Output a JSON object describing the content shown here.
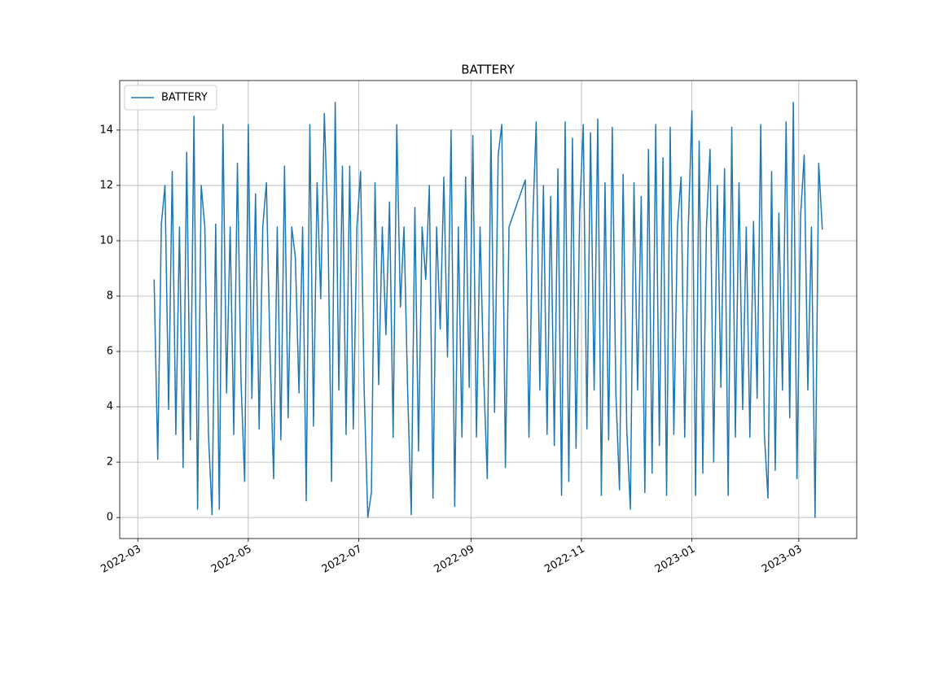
{
  "chart_data": {
    "type": "line",
    "title": "BATTERY",
    "series": [
      {
        "name": "BATTERY",
        "color": "#1f77b4",
        "x": [
          "2022-03-10",
          "2022-03-12",
          "2022-03-14",
          "2022-03-16",
          "2022-03-18",
          "2022-03-20",
          "2022-03-22",
          "2022-03-24",
          "2022-03-26",
          "2022-03-28",
          "2022-03-30",
          "2022-04-01",
          "2022-04-03",
          "2022-04-05",
          "2022-04-07",
          "2022-04-09",
          "2022-04-11",
          "2022-04-13",
          "2022-04-15",
          "2022-04-17",
          "2022-04-19",
          "2022-04-21",
          "2022-04-23",
          "2022-04-25",
          "2022-04-27",
          "2022-04-29",
          "2022-05-01",
          "2022-05-03",
          "2022-05-05",
          "2022-05-07",
          "2022-05-09",
          "2022-05-11",
          "2022-05-13",
          "2022-05-15",
          "2022-05-17",
          "2022-05-19",
          "2022-05-21",
          "2022-05-23",
          "2022-05-25",
          "2022-05-27",
          "2022-05-29",
          "2022-05-31",
          "2022-06-02",
          "2022-06-04",
          "2022-06-06",
          "2022-06-08",
          "2022-06-10",
          "2022-06-12",
          "2022-06-14",
          "2022-06-16",
          "2022-06-18",
          "2022-06-20",
          "2022-06-22",
          "2022-06-24",
          "2022-06-26",
          "2022-06-28",
          "2022-06-30",
          "2022-07-02",
          "2022-07-04",
          "2022-07-06",
          "2022-07-08",
          "2022-07-10",
          "2022-07-12",
          "2022-07-14",
          "2022-07-16",
          "2022-07-18",
          "2022-07-20",
          "2022-07-22",
          "2022-07-24",
          "2022-07-26",
          "2022-07-28",
          "2022-07-30",
          "2022-08-01",
          "2022-08-03",
          "2022-08-05",
          "2022-08-07",
          "2022-08-09",
          "2022-08-11",
          "2022-08-13",
          "2022-08-15",
          "2022-08-17",
          "2022-08-19",
          "2022-08-21",
          "2022-08-23",
          "2022-08-25",
          "2022-08-27",
          "2022-08-29",
          "2022-08-31",
          "2022-09-02",
          "2022-09-04",
          "2022-09-06",
          "2022-09-08",
          "2022-09-10",
          "2022-09-12",
          "2022-09-14",
          "2022-09-16",
          "2022-09-18",
          "2022-09-20",
          "2022-09-22",
          "2022-10-01",
          "2022-10-03",
          "2022-10-05",
          "2022-10-07",
          "2022-10-09",
          "2022-10-11",
          "2022-10-13",
          "2022-10-15",
          "2022-10-17",
          "2022-10-19",
          "2022-10-21",
          "2022-10-23",
          "2022-10-25",
          "2022-10-27",
          "2022-10-29",
          "2022-10-31",
          "2022-11-02",
          "2022-11-04",
          "2022-11-06",
          "2022-11-08",
          "2022-11-10",
          "2022-11-12",
          "2022-11-14",
          "2022-11-16",
          "2022-11-18",
          "2022-11-20",
          "2022-11-22",
          "2022-11-24",
          "2022-11-26",
          "2022-11-28",
          "2022-11-30",
          "2022-12-02",
          "2022-12-04",
          "2022-12-06",
          "2022-12-08",
          "2022-12-10",
          "2022-12-12",
          "2022-12-14",
          "2022-12-16",
          "2022-12-18",
          "2022-12-20",
          "2022-12-22",
          "2022-12-24",
          "2022-12-26",
          "2022-12-28",
          "2022-12-30",
          "2023-01-01",
          "2023-01-03",
          "2023-01-05",
          "2023-01-07",
          "2023-01-09",
          "2023-01-11",
          "2023-01-13",
          "2023-01-15",
          "2023-01-17",
          "2023-01-19",
          "2023-01-21",
          "2023-01-23",
          "2023-01-25",
          "2023-01-27",
          "2023-01-29",
          "2023-01-31",
          "2023-02-02",
          "2023-02-04",
          "2023-02-06",
          "2023-02-08",
          "2023-02-10",
          "2023-02-12",
          "2023-02-14",
          "2023-02-16",
          "2023-02-18",
          "2023-02-20",
          "2023-02-22",
          "2023-02-24",
          "2023-02-26",
          "2023-02-28",
          "2023-03-02",
          "2023-03-04",
          "2023-03-06",
          "2023-03-08",
          "2023-03-10",
          "2023-03-12",
          "2023-03-14"
        ],
        "values": [
          8.6,
          2.1,
          10.6,
          12.0,
          3.9,
          12.5,
          3.0,
          10.5,
          1.8,
          13.2,
          2.8,
          14.5,
          0.3,
          12.0,
          10.5,
          3.0,
          0.1,
          10.6,
          0.3,
          14.2,
          4.5,
          10.5,
          3.0,
          12.8,
          4.9,
          1.3,
          14.2,
          4.3,
          11.7,
          3.2,
          10.5,
          12.1,
          6.0,
          1.4,
          10.5,
          2.8,
          12.7,
          3.6,
          10.5,
          9.4,
          4.5,
          10.5,
          0.6,
          14.2,
          3.3,
          12.1,
          7.9,
          14.6,
          10.5,
          1.3,
          15.0,
          4.6,
          12.7,
          3.0,
          12.7,
          3.2,
          10.5,
          12.5,
          4.6,
          0.0,
          0.9,
          12.1,
          4.8,
          10.5,
          6.6,
          11.4,
          2.9,
          14.2,
          7.6,
          10.5,
          4.6,
          0.1,
          11.2,
          2.4,
          10.5,
          8.6,
          12.0,
          0.7,
          10.5,
          6.8,
          12.3,
          5.8,
          14.0,
          0.4,
          10.5,
          2.9,
          12.3,
          4.7,
          13.8,
          2.9,
          10.5,
          5.1,
          1.4,
          14.0,
          3.8,
          13.1,
          14.2,
          1.8,
          10.5,
          12.2,
          2.9,
          10.5,
          14.3,
          4.6,
          12.0,
          3.0,
          11.6,
          2.6,
          12.6,
          0.8,
          14.3,
          1.3,
          13.7,
          2.5,
          11.0,
          14.2,
          3.2,
          13.9,
          4.6,
          14.4,
          0.8,
          12.1,
          2.8,
          14.1,
          4.5,
          1.0,
          12.4,
          3.2,
          0.3,
          12.1,
          4.6,
          11.6,
          0.9,
          13.3,
          1.6,
          14.2,
          2.6,
          13.0,
          0.8,
          14.1,
          3.0,
          10.5,
          12.3,
          2.9,
          10.5,
          14.7,
          0.8,
          13.6,
          1.6,
          10.5,
          13.3,
          2.0,
          12.0,
          4.7,
          12.6,
          0.8,
          14.1,
          2.9,
          12.1,
          3.9,
          10.5,
          2.9,
          10.7,
          4.3,
          14.2,
          3.0,
          0.7,
          12.5,
          1.7,
          11.0,
          4.6,
          14.3,
          3.6,
          15.0,
          1.4,
          10.9,
          13.1,
          4.6,
          10.5,
          0.0,
          12.8,
          10.4
        ]
      }
    ],
    "xlim": [
      "2022-02-19",
      "2023-04-02"
    ],
    "xticks": [
      {
        "value": "2022-03-01",
        "label": "2022-03"
      },
      {
        "value": "2022-05-01",
        "label": "2022-05"
      },
      {
        "value": "2022-07-01",
        "label": "2022-07"
      },
      {
        "value": "2022-09-01",
        "label": "2022-09"
      },
      {
        "value": "2022-11-01",
        "label": "2022-11"
      },
      {
        "value": "2023-01-01",
        "label": "2023-01"
      },
      {
        "value": "2023-03-01",
        "label": "2023-03"
      }
    ],
    "ylim": [
      -0.76,
      15.79
    ],
    "yticks": [
      0,
      2,
      4,
      6,
      8,
      10,
      12,
      14
    ],
    "grid": true,
    "legend": "upper left"
  }
}
